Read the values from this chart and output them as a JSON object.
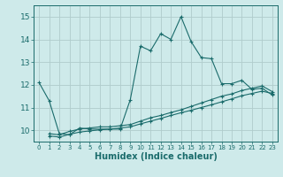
{
  "title": "",
  "xlabel": "Humidex (Indice chaleur)",
  "ylabel": "",
  "bg_color": "#ceeaea",
  "grid_color": "#b0cccc",
  "line_color": "#1a6b6b",
  "xlim": [
    -0.5,
    23.5
  ],
  "ylim": [
    9.5,
    15.5
  ],
  "yticks": [
    10,
    11,
    12,
    13,
    14,
    15
  ],
  "xticks": [
    0,
    1,
    2,
    3,
    4,
    5,
    6,
    7,
    8,
    9,
    10,
    11,
    12,
    13,
    14,
    15,
    16,
    17,
    18,
    19,
    20,
    21,
    22,
    23
  ],
  "line1_x": [
    0,
    1,
    2,
    3,
    4,
    5,
    6,
    7,
    8,
    9,
    10,
    11,
    12,
    13,
    14,
    15,
    16,
    17,
    18,
    19,
    20,
    21,
    22,
    23
  ],
  "line1_y": [
    12.1,
    11.3,
    9.85,
    9.8,
    10.1,
    10.05,
    10.05,
    10.05,
    10.05,
    11.35,
    13.7,
    13.5,
    14.25,
    14.0,
    15.0,
    13.9,
    13.2,
    13.15,
    12.05,
    12.05,
    12.2,
    11.8,
    11.85,
    11.55
  ],
  "line2_x": [
    1,
    2,
    3,
    4,
    5,
    6,
    7,
    8,
    9,
    10,
    11,
    12,
    13,
    14,
    15,
    16,
    17,
    18,
    19,
    20,
    21,
    22,
    23
  ],
  "line2_y": [
    9.85,
    9.8,
    9.95,
    10.05,
    10.1,
    10.15,
    10.15,
    10.2,
    10.25,
    10.4,
    10.55,
    10.65,
    10.78,
    10.9,
    11.05,
    11.2,
    11.35,
    11.5,
    11.6,
    11.75,
    11.85,
    11.95,
    11.7
  ],
  "line3_x": [
    1,
    2,
    3,
    4,
    5,
    6,
    7,
    8,
    9,
    10,
    11,
    12,
    13,
    14,
    15,
    16,
    17,
    18,
    19,
    20,
    21,
    22,
    23
  ],
  "line3_y": [
    9.75,
    9.7,
    9.82,
    9.92,
    9.97,
    10.02,
    10.05,
    10.1,
    10.15,
    10.28,
    10.4,
    10.52,
    10.65,
    10.77,
    10.88,
    11.0,
    11.12,
    11.25,
    11.38,
    11.52,
    11.62,
    11.72,
    11.62
  ]
}
